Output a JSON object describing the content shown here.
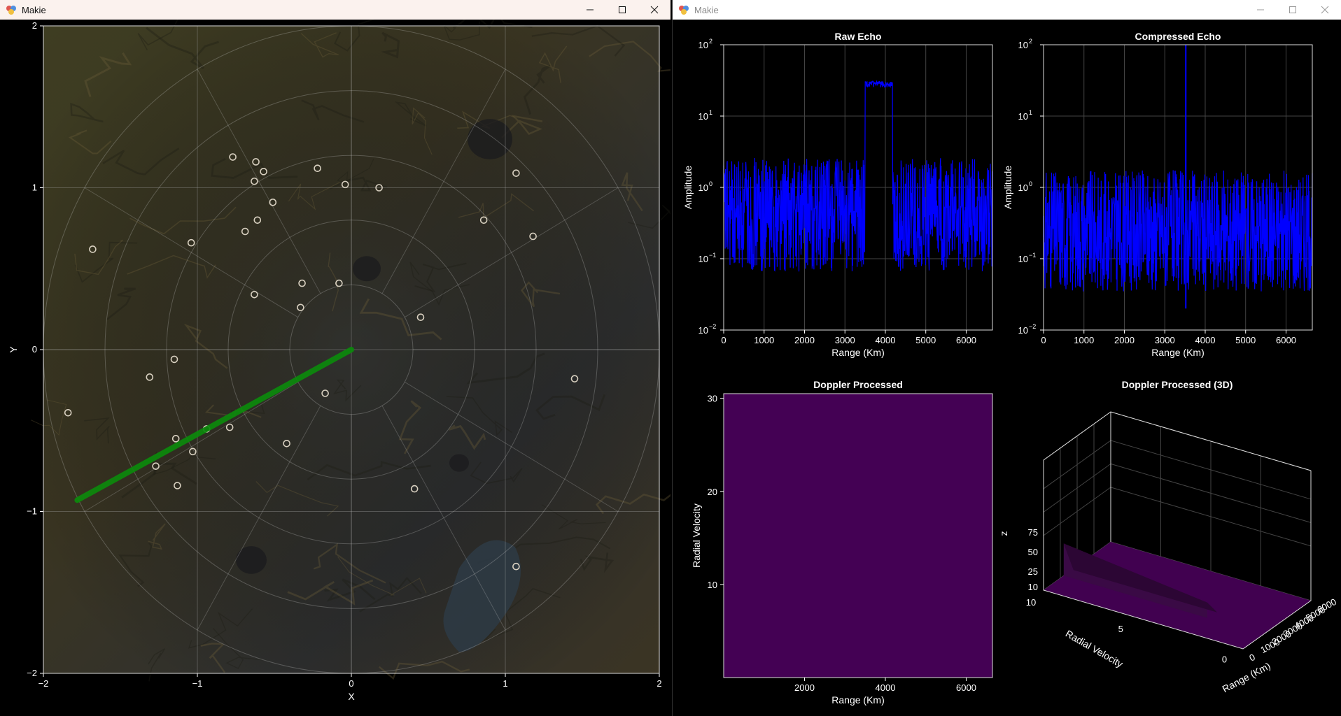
{
  "windows": [
    {
      "title": "Makie",
      "state": "active"
    },
    {
      "title": "Makie",
      "state": "inactive"
    }
  ],
  "icons": {
    "app": "makie-logo-icon",
    "minimize": "minimize-icon",
    "maximize": "maximize-icon",
    "close": "close-icon"
  },
  "colors": {
    "beam": "#0c8a0c",
    "echo": "#0000ff",
    "heatmap": "#440154",
    "target_ring": "#d8d0c0"
  },
  "chart_data": [
    {
      "type": "scatter",
      "name_on_screen": "radar-map",
      "xlabel": "X",
      "ylabel": "Y",
      "xlim": [
        -2,
        2
      ],
      "ylim": [
        -2,
        2
      ],
      "x_ticks": [
        "−2",
        "−1",
        "0",
        "1",
        "2"
      ],
      "y_ticks": [
        "−2",
        "−1",
        "0",
        "1",
        "2"
      ],
      "grid": true,
      "polar_rings": [
        0.4,
        0.8,
        1.2,
        1.6,
        2.0
      ],
      "beam": {
        "from": [
          0,
          0
        ],
        "to": [
          -1.78,
          -0.93
        ]
      },
      "targets": [
        [
          -0.77,
          1.19
        ],
        [
          -0.62,
          1.16
        ],
        [
          -0.57,
          1.1
        ],
        [
          -0.63,
          1.04
        ],
        [
          -0.51,
          0.91
        ],
        [
          -0.61,
          0.8
        ],
        [
          -0.69,
          0.73
        ],
        [
          -1.04,
          0.66
        ],
        [
          -0.22,
          1.12
        ],
        [
          -0.04,
          1.02
        ],
        [
          0.18,
          1.0
        ],
        [
          -1.68,
          0.62
        ],
        [
          -0.32,
          0.41
        ],
        [
          -0.08,
          0.41
        ],
        [
          -0.63,
          0.34
        ],
        [
          -0.33,
          0.26
        ],
        [
          0.45,
          0.2
        ],
        [
          0.86,
          0.8
        ],
        [
          1.07,
          1.09
        ],
        [
          1.18,
          0.7
        ],
        [
          -1.15,
          -0.06
        ],
        [
          -1.31,
          -0.17
        ],
        [
          -1.84,
          -0.39
        ],
        [
          -0.17,
          -0.27
        ],
        [
          -0.94,
          -0.49
        ],
        [
          -1.14,
          -0.55
        ],
        [
          -0.79,
          -0.48
        ],
        [
          -0.42,
          -0.58
        ],
        [
          -1.03,
          -0.63
        ],
        [
          -1.27,
          -0.72
        ],
        [
          -1.13,
          -0.84
        ],
        [
          0.41,
          -0.86
        ],
        [
          1.45,
          -0.18
        ],
        [
          1.07,
          -1.34
        ]
      ]
    },
    {
      "type": "line",
      "title": "Raw Echo",
      "xlabel": "Range (Km)",
      "ylabel": "Amplitude",
      "xlim": [
        0,
        6650
      ],
      "yscale": "log10",
      "ylim": [
        0.01,
        100
      ],
      "x_ticks": [
        "0",
        "1000",
        "2000",
        "3000",
        "4000",
        "5000",
        "6000"
      ],
      "y_ticks": [
        {
          "b": "10",
          "e": "2"
        },
        {
          "b": "10",
          "e": "1"
        },
        {
          "b": "10",
          "e": "0"
        },
        {
          "b": "10",
          "e": "−1"
        },
        {
          "b": "10",
          "e": "−2"
        }
      ],
      "series": [
        {
          "segments": [
            {
              "x_start": 0,
              "x_end": 3500,
              "level": 0.6,
              "kind": "noise"
            },
            {
              "x_start": 3500,
              "x_end": 4180,
              "level": 28,
              "kind": "pulse"
            },
            {
              "x_start": 4180,
              "x_end": 6650,
              "level": 0.6,
              "kind": "noise"
            }
          ]
        }
      ]
    },
    {
      "type": "line",
      "title": "Compressed Echo",
      "xlabel": "Range (Km)",
      "ylabel": "Amplitude",
      "xlim": [
        0,
        6650
      ],
      "yscale": "log10",
      "ylim": [
        0.01,
        100
      ],
      "x_ticks": [
        "0",
        "1000",
        "2000",
        "3000",
        "4000",
        "5000",
        "6000"
      ],
      "y_ticks": [
        {
          "b": "10",
          "e": "2"
        },
        {
          "b": "10",
          "e": "1"
        },
        {
          "b": "10",
          "e": "0"
        },
        {
          "b": "10",
          "e": "−1"
        },
        {
          "b": "10",
          "e": "−2"
        }
      ],
      "series": [
        {
          "baseline": 0.3,
          "peak": {
            "x": 3520,
            "y": 100
          }
        }
      ]
    },
    {
      "type": "heatmap",
      "title": "Doppler Processed",
      "xlabel": "Range (Km)",
      "ylabel": "Radial Velocity",
      "xlim": [
        0,
        6650
      ],
      "ylim": [
        0,
        30.5
      ],
      "x_ticks": [
        "2000",
        "4000",
        "6000"
      ],
      "y_ticks": [
        "10",
        "20",
        "30"
      ],
      "fill_color": "#440154"
    },
    {
      "type": "surface",
      "title": "Doppler Processed (3D)",
      "xlabel": "Range (Km)",
      "ylabel": "Radial Velocity",
      "zlabel": "z",
      "x_ticks": [
        "0",
        "1000",
        "2000",
        "3000",
        "4000",
        "5000",
        "6000"
      ],
      "y_ticks": [
        "0",
        "5",
        "10"
      ],
      "z_ticks": [
        "10",
        "25",
        "50",
        "75"
      ],
      "fill_color": "#440154"
    }
  ]
}
